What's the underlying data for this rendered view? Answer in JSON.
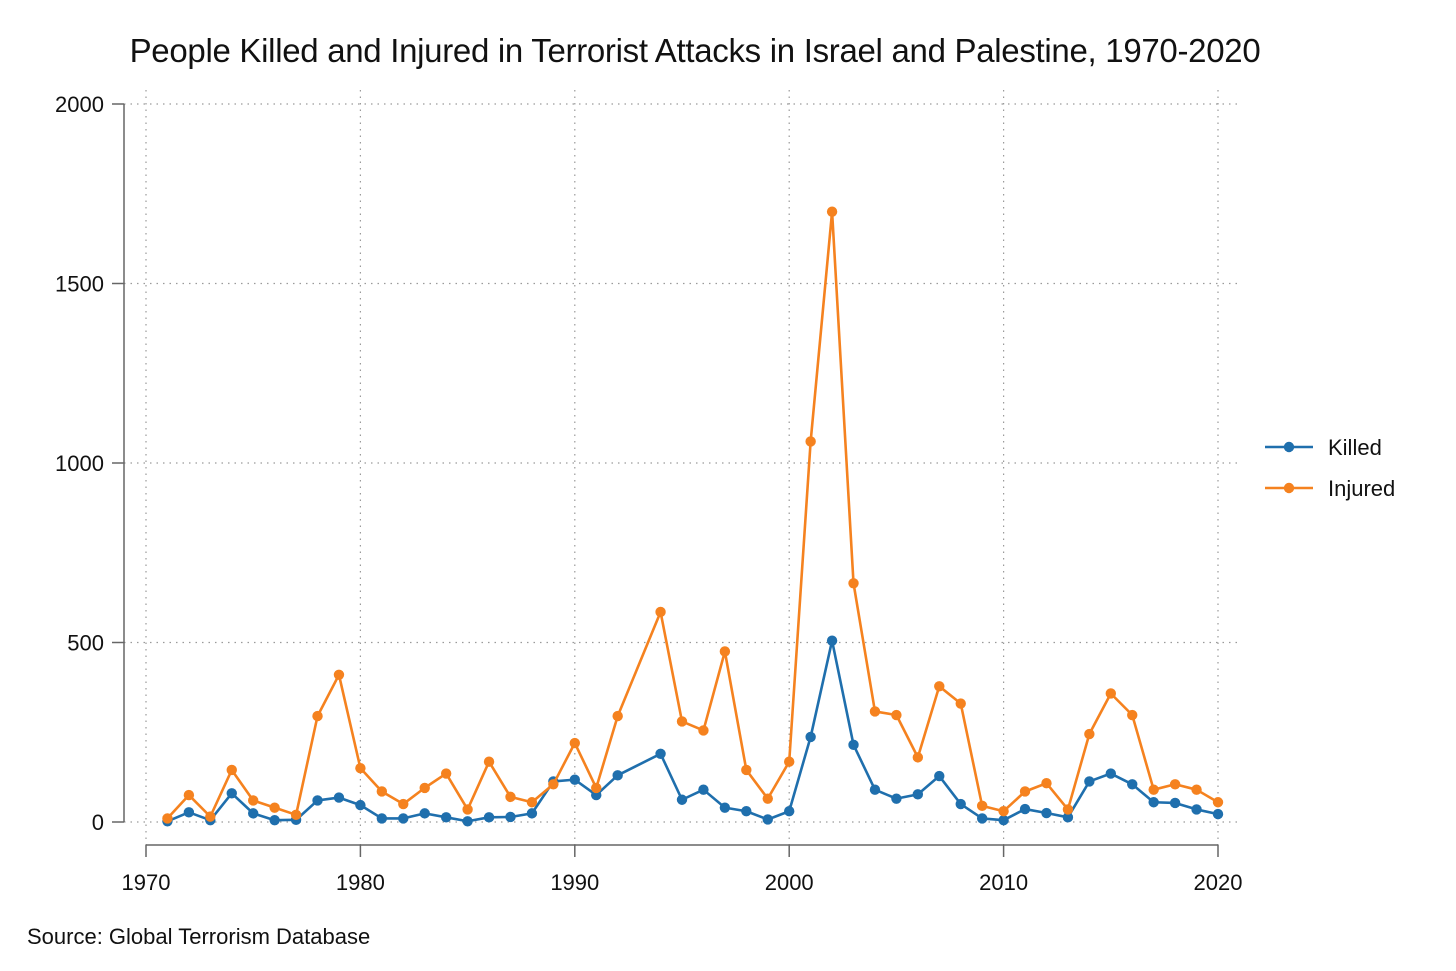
{
  "chart_data": {
    "type": "line",
    "title": "People Killed and Injured in Terrorist Attacks in Israel and Palestine, 1970-2020",
    "xlabel": "",
    "ylabel": "",
    "xlim": [
      1970,
      2020
    ],
    "ylim": [
      0,
      2000
    ],
    "xticks": [
      1970,
      1980,
      1990,
      2000,
      2010,
      2020
    ],
    "yticks": [
      0,
      500,
      1000,
      1500,
      2000
    ],
    "grid": true,
    "legend_position": "right",
    "x": [
      1971,
      1972,
      1973,
      1974,
      1975,
      1976,
      1977,
      1978,
      1979,
      1980,
      1981,
      1982,
      1983,
      1984,
      1985,
      1986,
      1987,
      1988,
      1989,
      1990,
      1991,
      1992,
      1994,
      1995,
      1996,
      1997,
      1998,
      1999,
      2000,
      2001,
      2002,
      2003,
      2004,
      2005,
      2006,
      2007,
      2008,
      2009,
      2010,
      2011,
      2012,
      2013,
      2014,
      2015,
      2016,
      2017,
      2018,
      2019,
      2020
    ],
    "series": [
      {
        "name": "Killed",
        "color": "#1f6fad",
        "values": [
          2,
          27,
          5,
          80,
          24,
          5,
          6,
          60,
          68,
          47,
          10,
          10,
          24,
          13,
          2,
          13,
          14,
          24,
          113,
          118,
          75,
          130,
          190,
          62,
          90,
          40,
          30,
          7,
          30,
          237,
          505,
          215,
          90,
          65,
          77,
          128,
          50,
          10,
          5,
          36,
          25,
          13,
          113,
          135,
          105,
          55,
          53,
          35,
          22
        ]
      },
      {
        "name": "Injured",
        "color": "#f5821f",
        "values": [
          10,
          75,
          15,
          145,
          60,
          40,
          20,
          295,
          410,
          150,
          85,
          50,
          95,
          135,
          35,
          168,
          70,
          55,
          105,
          220,
          95,
          295,
          585,
          280,
          255,
          475,
          145,
          65,
          168,
          1060,
          1700,
          665,
          308,
          298,
          180,
          378,
          330,
          45,
          30,
          85,
          108,
          35,
          245,
          358,
          298,
          90,
          105,
          90,
          55
        ]
      }
    ],
    "source_note": "Source: Global Terrorism Database"
  }
}
